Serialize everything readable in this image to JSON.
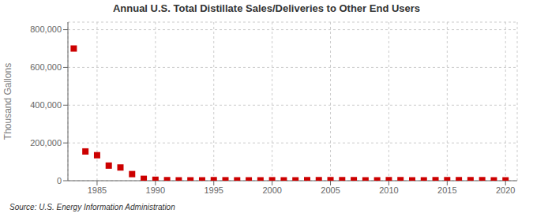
{
  "chart_data": {
    "type": "scatter",
    "title": "Annual U.S. Total Distillate Sales/Deliveries to Other End Users",
    "ylabel": "Thousand Gallons",
    "annotations": [
      "Source: U.S. Energy Information Administration"
    ],
    "color": "#cc0000",
    "marker": "square",
    "grid": true,
    "xlim": [
      1982.5,
      2021
    ],
    "xticks": [
      1985,
      1990,
      1995,
      2000,
      2005,
      2010,
      2015,
      2020
    ],
    "ylim": [
      0,
      840000
    ],
    "yticks": [
      0,
      {
        "value": 200000,
        "label": "200,000"
      },
      {
        "value": 400000,
        "label": "400,000"
      },
      {
        "value": 600000,
        "label": "600,000"
      },
      {
        "value": 800000,
        "label": "800,000"
      }
    ],
    "x": [
      1983,
      1984,
      1985,
      1986,
      1987,
      1988,
      1989,
      1990,
      1991,
      1992,
      1993,
      1994,
      1995,
      1996,
      1997,
      1998,
      1999,
      2000,
      2001,
      2002,
      2003,
      2004,
      2005,
      2006,
      2007,
      2008,
      2009,
      2010,
      2011,
      2012,
      2013,
      2014,
      2015,
      2016,
      2017,
      2018,
      2019,
      2020
    ],
    "values": [
      700000,
      155000,
      135000,
      80000,
      70000,
      35000,
      10000,
      5000,
      3000,
      2000,
      2000,
      2000,
      3000,
      2500,
      2000,
      2000,
      2000,
      2500,
      2000,
      2000,
      3000,
      3000,
      3000,
      3000,
      3000,
      2000,
      2000,
      3000,
      3000,
      2000,
      2000,
      3000,
      3000,
      3000,
      3000,
      3000,
      2000,
      2000
    ]
  }
}
